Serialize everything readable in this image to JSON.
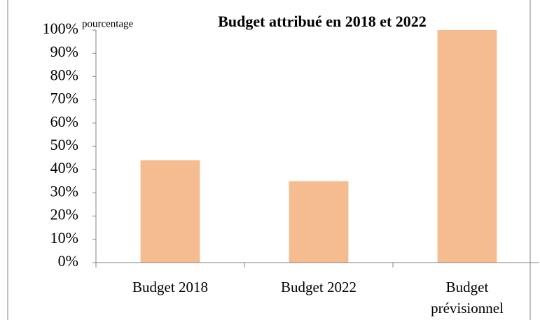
{
  "chart_data": {
    "type": "bar",
    "title": "Budget attribué en 2018 et 2022",
    "y_label": "pourcentage",
    "categories": [
      "Budget 2018",
      "Budget 2022",
      "Budget prévisionnel"
    ],
    "values": [
      44,
      35,
      100
    ],
    "color": "#f5bd8f",
    "ylim": [
      0,
      100
    ],
    "yticks": [
      {
        "value": 0,
        "label": "0%"
      },
      {
        "value": 10,
        "label": "10%"
      },
      {
        "value": 20,
        "label": "20%"
      },
      {
        "value": 30,
        "label": "30%"
      },
      {
        "value": 40,
        "label": "40%"
      },
      {
        "value": 50,
        "label": "50%"
      },
      {
        "value": 60,
        "label": "60%"
      },
      {
        "value": 70,
        "label": "70%"
      },
      {
        "value": 80,
        "label": "80%"
      },
      {
        "value": 90,
        "label": "90%"
      },
      {
        "value": 100,
        "label": "100%"
      }
    ],
    "grid": false
  }
}
